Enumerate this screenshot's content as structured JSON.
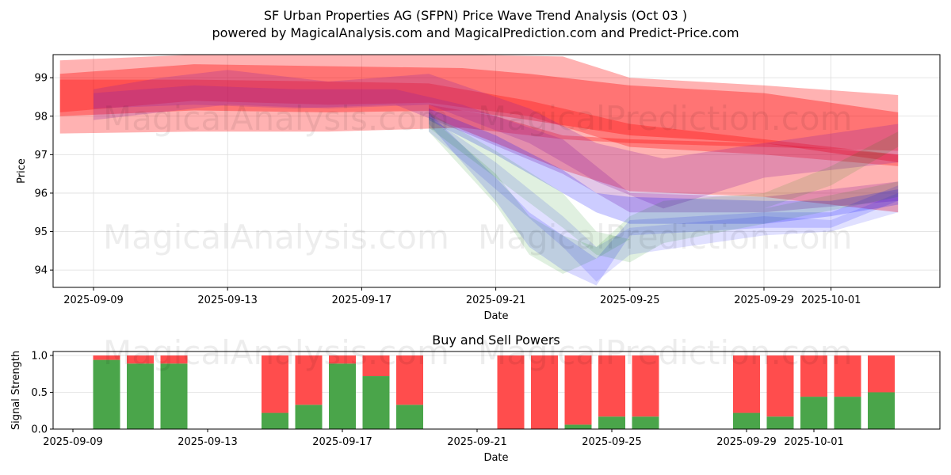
{
  "header": {
    "title": "SF Urban Properties AG (SFPN) Price Wave Trend Analysis (Oct 03 )",
    "subtitle": "powered by MagicalAnalysis.com and MagicalPrediction.com and Predict-Price.com"
  },
  "watermarks": [
    "MagicalAnalysis.com",
    "MagicalPrediction.com"
  ],
  "colors": {
    "red_band": "#ff0000",
    "blue_band": "#0000ff",
    "green_band": "#008000",
    "buy": "#4aa54a",
    "sell": "#ff4d4d",
    "grid": "#dddddd"
  },
  "chart_data": [
    {
      "type": "area",
      "title": "",
      "xlabel": "Date",
      "ylabel": "Price",
      "ylim": [
        93.55,
        99.6
      ],
      "xlim": [
        "2025-09-07.8",
        "2025-10-04.2"
      ],
      "yticks": [
        94,
        95,
        96,
        97,
        98,
        99
      ],
      "xticks": [
        "2025-09-09",
        "2025-09-13",
        "2025-09-17",
        "2025-09-21",
        "2025-09-25",
        "2025-09-29",
        "2025-10-01"
      ],
      "grid": true,
      "series": [
        {
          "name": "red-wide-upper",
          "color": "red",
          "opacity": 0.3,
          "x": [
            "2025-09-08",
            "2025-09-12",
            "2025-09-16",
            "2025-09-20",
            "2025-09-23",
            "2025-09-25",
            "2025-09-29",
            "2025-10-03"
          ],
          "upper": [
            99.45,
            99.6,
            99.6,
            99.6,
            99.55,
            99.0,
            98.8,
            98.55
          ],
          "lower": [
            97.55,
            97.6,
            97.6,
            97.7,
            97.4,
            97.3,
            97.2,
            97.1
          ]
        },
        {
          "name": "red-main",
          "color": "red",
          "opacity": 0.35,
          "x": [
            "2025-09-08",
            "2025-09-12",
            "2025-09-16",
            "2025-09-20",
            "2025-09-22",
            "2025-09-25",
            "2025-09-29",
            "2025-10-03"
          ],
          "upper": [
            99.1,
            99.35,
            99.3,
            99.25,
            99.1,
            98.8,
            98.6,
            98.1
          ],
          "lower": [
            98.0,
            98.15,
            98.1,
            98.15,
            97.9,
            97.5,
            97.3,
            96.8
          ]
        },
        {
          "name": "red-mid",
          "color": "red",
          "opacity": 0.3,
          "x": [
            "2025-09-08",
            "2025-09-12",
            "2025-09-16",
            "2025-09-19",
            "2025-09-22",
            "2025-09-25",
            "2025-09-29",
            "2025-10-03"
          ],
          "upper": [
            98.95,
            98.95,
            98.9,
            98.85,
            98.4,
            97.8,
            97.4,
            97.0
          ],
          "lower": [
            98.1,
            98.4,
            98.3,
            98.35,
            98.0,
            97.2,
            97.0,
            96.7
          ]
        },
        {
          "name": "red-lower",
          "color": "red",
          "opacity": 0.3,
          "x": [
            "2025-09-19",
            "2025-09-21",
            "2025-09-23",
            "2025-09-25",
            "2025-09-29",
            "2025-10-03"
          ],
          "upper": [
            98.3,
            98.0,
            97.5,
            97.4,
            97.3,
            97.0
          ],
          "lower": [
            98.0,
            97.3,
            96.6,
            96.05,
            95.9,
            95.5
          ]
        },
        {
          "name": "purple-1",
          "color": "purple",
          "opacity": 0.25,
          "x": [
            "2025-09-09",
            "2025-09-11",
            "2025-09-13",
            "2025-09-16",
            "2025-09-19",
            "2025-09-22",
            "2025-09-24",
            "2025-09-26",
            "2025-09-29",
            "2025-10-03"
          ],
          "upper": [
            98.7,
            99.0,
            99.2,
            98.9,
            99.1,
            98.2,
            97.3,
            96.9,
            97.3,
            97.8
          ],
          "lower": [
            97.9,
            98.1,
            98.3,
            98.2,
            98.3,
            97.3,
            96.3,
            95.6,
            96.4,
            96.8
          ]
        },
        {
          "name": "purple-2",
          "color": "purple",
          "opacity": 0.25,
          "x": [
            "2025-09-09",
            "2025-09-12",
            "2025-09-15",
            "2025-09-18",
            "2025-09-20",
            "2025-09-23",
            "2025-09-25",
            "2025-09-29",
            "2025-10-03"
          ],
          "upper": [
            98.6,
            98.8,
            98.7,
            98.7,
            98.3,
            97.4,
            96.0,
            95.9,
            96.3
          ],
          "lower": [
            98.2,
            98.3,
            98.2,
            98.3,
            97.6,
            96.5,
            95.5,
            95.5,
            95.8
          ]
        },
        {
          "name": "blue-1",
          "color": "blue",
          "opacity": 0.2,
          "x": [
            "2025-09-19",
            "2025-09-21",
            "2025-09-23",
            "2025-09-24",
            "2025-09-25",
            "2025-09-29",
            "2025-10-01",
            "2025-10-03"
          ],
          "upper": [
            98.2,
            97.5,
            96.6,
            96.0,
            95.9,
            95.8,
            95.8,
            96.1
          ],
          "lower": [
            97.9,
            97.0,
            96.0,
            95.5,
            95.2,
            95.2,
            95.4,
            95.7
          ]
        },
        {
          "name": "blue-2",
          "color": "blue",
          "opacity": 0.15,
          "x": [
            "2025-09-19",
            "2025-09-21",
            "2025-09-22",
            "2025-09-23",
            "2025-09-24",
            "2025-09-25",
            "2025-09-29",
            "2025-10-01",
            "2025-10-03"
          ],
          "upper": [
            98.1,
            96.4,
            95.5,
            94.9,
            94.3,
            95.3,
            95.5,
            95.5,
            96.2
          ],
          "lower": [
            97.8,
            95.8,
            94.6,
            94.0,
            93.6,
            94.9,
            95.1,
            95.1,
            95.8
          ]
        },
        {
          "name": "blue-3",
          "color": "blue",
          "opacity": 0.12,
          "x": [
            "2025-09-19",
            "2025-09-21",
            "2025-09-23",
            "2025-09-24",
            "2025-09-25",
            "2025-09-29",
            "2025-10-01",
            "2025-10-03"
          ],
          "upper": [
            98.0,
            96.8,
            95.4,
            94.6,
            95.1,
            95.4,
            95.3,
            96.0
          ],
          "lower": [
            97.6,
            96.1,
            94.6,
            93.7,
            94.4,
            94.9,
            95.0,
            95.5
          ]
        },
        {
          "name": "green-1",
          "color": "green",
          "opacity": 0.12,
          "x": [
            "2025-09-19",
            "2025-09-21",
            "2025-09-22",
            "2025-09-23",
            "2025-09-24",
            "2025-09-25",
            "2025-09-26",
            "2025-09-29",
            "2025-10-01",
            "2025-10-03"
          ],
          "upper": [
            98.0,
            96.5,
            95.4,
            94.9,
            94.6,
            95.4,
            95.8,
            96.0,
            96.7,
            97.6
          ],
          "lower": [
            97.6,
            95.7,
            94.4,
            93.9,
            94.3,
            94.8,
            95.3,
            95.6,
            96.2,
            97.2
          ]
        },
        {
          "name": "green-2",
          "color": "green",
          "opacity": 0.12,
          "x": [
            "2025-09-19",
            "2025-09-21",
            "2025-09-23",
            "2025-09-24",
            "2025-09-25",
            "2025-09-26",
            "2025-09-29",
            "2025-10-03"
          ],
          "upper": [
            98.1,
            97.1,
            96.0,
            95.0,
            94.8,
            95.3,
            95.6,
            96.3
          ],
          "lower": [
            97.7,
            96.4,
            95.1,
            94.4,
            94.2,
            94.7,
            95.2,
            95.9
          ]
        }
      ]
    },
    {
      "type": "bar",
      "title": "Buy and Sell Powers",
      "xlabel": "Date",
      "ylabel": "Signal Strength",
      "ylim": [
        0,
        1.05
      ],
      "yticks": [
        "0.0",
        "0.5",
        "1.0"
      ],
      "xticks": [
        "2025-09-09",
        "2025-09-13",
        "2025-09-17",
        "2025-09-21",
        "2025-09-25",
        "2025-09-29",
        "2025-10-01"
      ],
      "grid": true,
      "stacked": true,
      "categories": [
        "2025-09-10",
        "2025-09-11",
        "2025-09-12",
        "2025-09-15",
        "2025-09-16",
        "2025-09-17",
        "2025-09-18",
        "2025-09-19",
        "2025-09-22",
        "2025-09-23",
        "2025-09-24",
        "2025-09-25",
        "2025-09-26",
        "2025-09-29",
        "2025-09-30",
        "2025-10-01",
        "2025-10-02",
        "2025-10-03"
      ],
      "series": [
        {
          "name": "Buy",
          "color": "green",
          "values": [
            0.94,
            0.89,
            0.89,
            0.22,
            0.33,
            0.89,
            0.72,
            0.33,
            0.0,
            0.0,
            0.06,
            0.17,
            0.17,
            0.22,
            0.17,
            0.44,
            0.44,
            0.5
          ]
        },
        {
          "name": "Sell",
          "color": "red",
          "values": [
            0.06,
            0.11,
            0.11,
            0.78,
            0.67,
            0.11,
            0.28,
            0.67,
            1.0,
            1.0,
            0.94,
            0.83,
            0.83,
            0.78,
            0.83,
            0.56,
            0.56,
            0.5
          ]
        }
      ]
    }
  ]
}
